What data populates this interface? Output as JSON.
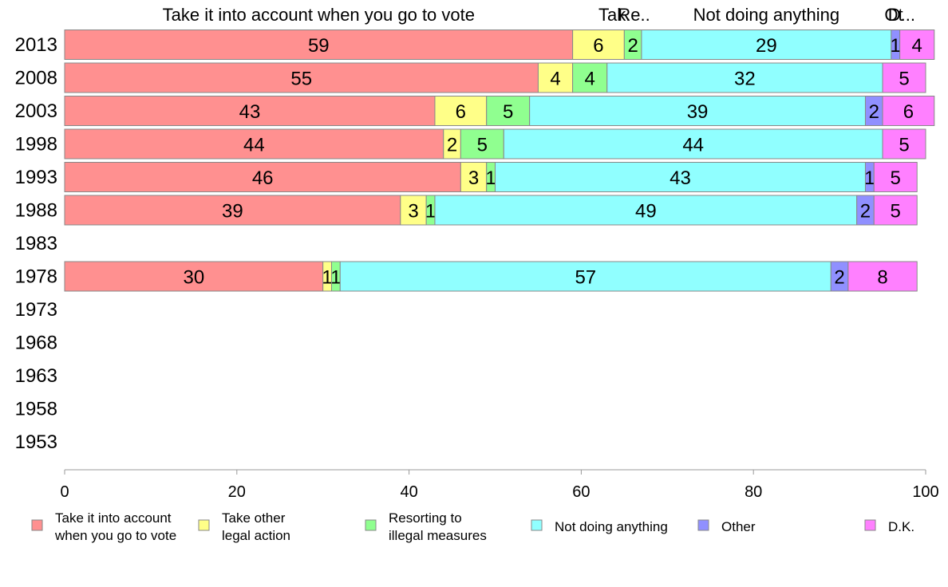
{
  "chart_data": {
    "type": "bar",
    "orientation": "horizontal",
    "stacked": true,
    "categories": [
      "2013",
      "2008",
      "2003",
      "1998",
      "1993",
      "1988",
      "1983",
      "1978",
      "1973",
      "1968",
      "1963",
      "1958",
      "1953"
    ],
    "series": [
      {
        "name": "Take it into account when you go to vote",
        "legend": [
          "Take it into account",
          "when you go to vote"
        ],
        "header": "Take it into account when you go to vote",
        "color": "#ff9090",
        "values": [
          59,
          55,
          43,
          44,
          46,
          39,
          null,
          30,
          null,
          null,
          null,
          null,
          null
        ]
      },
      {
        "name": "Take other legal action",
        "legend": [
          "Take other",
          "legal action"
        ],
        "header": "Tak.",
        "color": "#ffff88",
        "values": [
          6,
          4,
          6,
          2,
          3,
          3,
          null,
          1,
          null,
          null,
          null,
          null,
          null
        ]
      },
      {
        "name": "Resorting to illegal measures",
        "legend": [
          "Resorting to",
          "illegal measures"
        ],
        "header": "Re..",
        "color": "#90ff90",
        "values": [
          2,
          4,
          5,
          5,
          1,
          1,
          null,
          1,
          null,
          null,
          null,
          null,
          null
        ]
      },
      {
        "name": "Not doing anything",
        "legend": [
          "Not doing anything"
        ],
        "header": "Not doing anything",
        "color": "#90ffff",
        "values": [
          29,
          32,
          39,
          44,
          43,
          49,
          null,
          57,
          null,
          null,
          null,
          null,
          null
        ]
      },
      {
        "name": "Other",
        "legend": [
          "Other"
        ],
        "header": "Ot",
        "color": "#9090ff",
        "values": [
          1,
          0,
          2,
          0,
          1,
          2,
          null,
          2,
          null,
          null,
          null,
          null,
          null
        ]
      },
      {
        "name": "D.K.",
        "legend": [
          "D.K."
        ],
        "header": "D...",
        "color": "#ff80ff",
        "values": [
          4,
          5,
          6,
          5,
          5,
          5,
          null,
          8,
          null,
          null,
          null,
          null,
          null
        ]
      }
    ],
    "xlim": [
      0,
      100
    ],
    "xticks": [
      0,
      20,
      40,
      60,
      80,
      100
    ],
    "legend_position": "bottom",
    "grid": false
  }
}
